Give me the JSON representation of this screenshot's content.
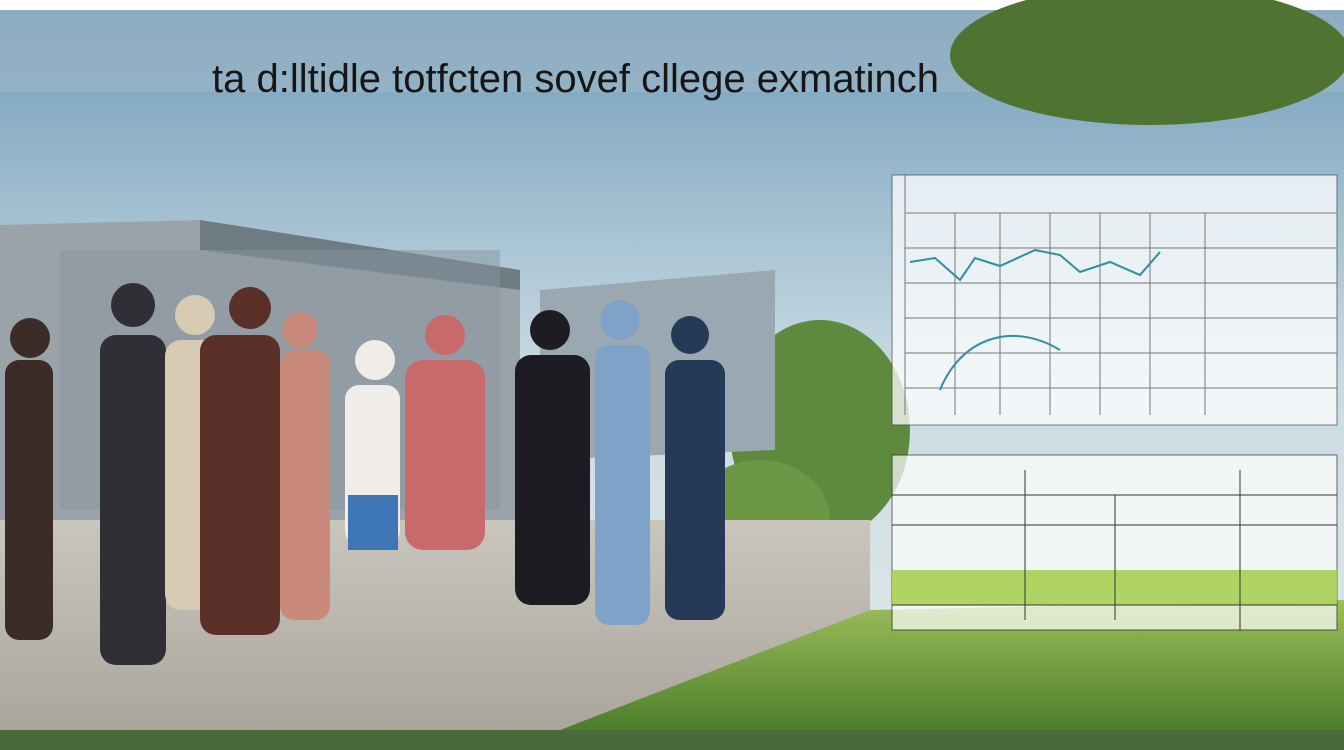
{
  "header": {
    "title": "ta d:lltidle totfcten sovef cllege exmatinch"
  }
}
